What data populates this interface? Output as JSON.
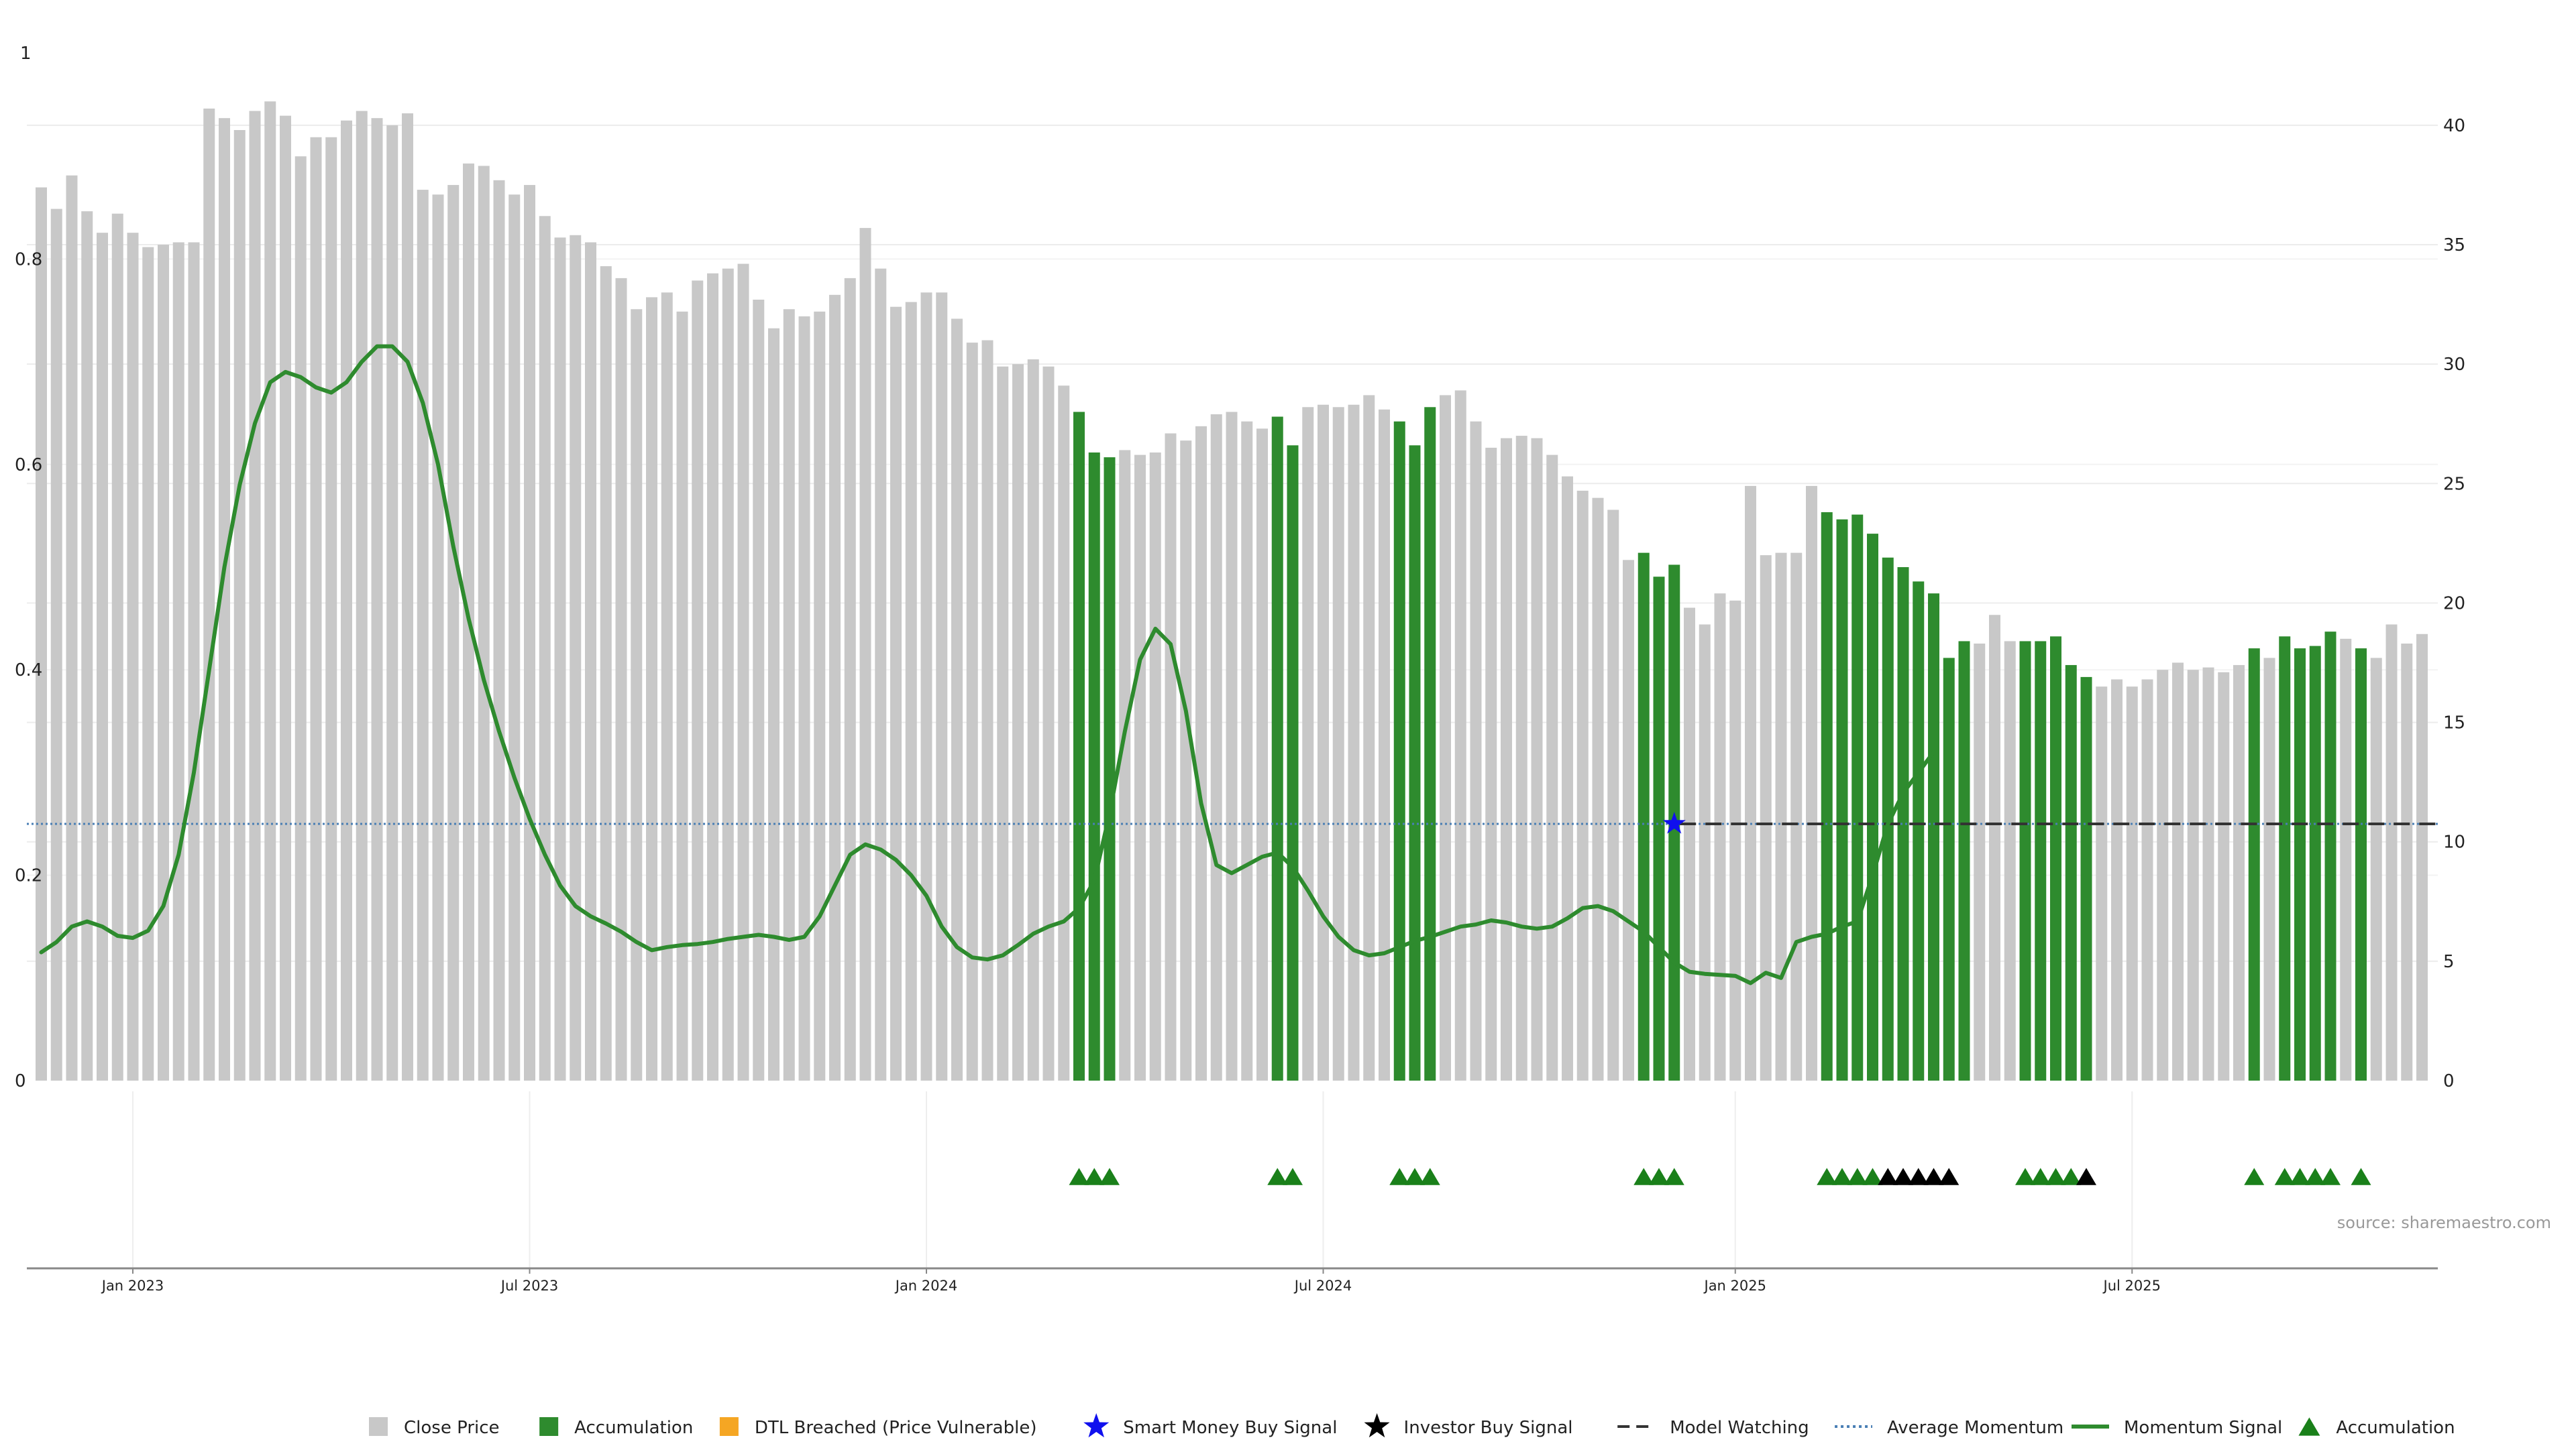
{
  "source_label": "source: sharemaestro.com",
  "colors": {
    "close_price": "#c8c8c8",
    "accumulation": "#2e8b2e",
    "dtl_breached": "#f5a623",
    "smart_money": "#1010ee",
    "investor": "#000000",
    "model_watching": "#333333",
    "average_momentum": "#4a7fb5",
    "momentum": "#2e8b2e",
    "acc_marker": "#1a801a",
    "investor_marker": "#000000"
  },
  "legend": [
    {
      "key": "close-price",
      "label": "Close Price",
      "symbol": "square",
      "color_key": "close_price"
    },
    {
      "key": "accumulation",
      "label": "Accumulation",
      "symbol": "square",
      "color_key": "accumulation"
    },
    {
      "key": "dtl-breached",
      "label": "DTL Breached (Price Vulnerable)",
      "symbol": "square",
      "color_key": "dtl_breached"
    },
    {
      "key": "smart-money-buy-signal",
      "label": "Smart Money Buy Signal",
      "symbol": "star",
      "color_key": "smart_money"
    },
    {
      "key": "investor-buy-signal",
      "label": "Investor Buy Signal",
      "symbol": "star",
      "color_key": "investor"
    },
    {
      "key": "model-watching",
      "label": "Model Watching",
      "symbol": "dash",
      "color_key": "model_watching"
    },
    {
      "key": "average-momentum",
      "label": "Average Momentum",
      "symbol": "dotted",
      "color_key": "average_momentum"
    },
    {
      "key": "momentum-signal",
      "label": "Momentum Signal",
      "symbol": "line",
      "color_key": "momentum"
    },
    {
      "key": "accumulation-marker",
      "label": "Accumulation",
      "symbol": "triangle",
      "color_key": "acc_marker"
    }
  ],
  "chart_data": {
    "type": "bar",
    "x_axis": {
      "tick_labels": [
        "Jan 2023",
        "Jul 2023",
        "Jan 2024",
        "Jul 2024",
        "Jan 2025",
        "Jul 2025"
      ],
      "tick_bar_index": [
        6,
        32,
        58,
        84,
        111,
        137
      ]
    },
    "y_left": {
      "range": [
        0,
        1
      ],
      "tick_values": [
        0,
        0.2,
        0.4,
        0.6,
        0.8
      ],
      "top_label": "1"
    },
    "y_right": {
      "range": [
        0,
        43
      ],
      "tick_values": [
        0,
        5,
        10,
        15,
        20,
        25,
        30,
        35,
        40
      ]
    },
    "grid": true,
    "legend_position": "bottom",
    "series": [
      {
        "name": "Close Price",
        "axis": "right",
        "values": [
          37.4,
          36.5,
          37.9,
          36.4,
          35.5,
          36.3,
          35.5,
          34.9,
          35.0,
          35.1,
          35.1,
          40.7,
          40.3,
          39.8,
          40.6,
          41.0,
          40.4,
          38.7,
          39.5,
          39.5,
          40.2,
          40.6,
          40.3,
          40.0,
          40.5,
          37.3,
          37.1,
          37.5,
          38.4,
          38.3,
          37.7,
          37.1,
          37.5,
          36.2,
          35.3,
          35.4,
          35.1,
          34.1,
          33.6,
          32.3,
          32.8,
          33.0,
          32.2,
          33.5,
          33.8,
          34.0,
          34.2,
          32.7,
          31.5,
          32.3,
          32.0,
          32.2,
          32.9,
          33.6,
          35.7,
          34.0,
          32.4,
          32.6,
          33.0,
          33.0,
          31.9,
          30.9,
          31.0,
          29.9,
          30.0,
          30.2,
          29.9,
          29.1,
          28.0,
          26.3,
          26.1,
          26.4,
          26.2,
          26.3,
          27.1,
          26.8,
          27.4,
          27.9,
          28.0,
          27.6,
          27.3,
          27.8,
          26.6,
          28.2,
          28.3,
          28.2,
          28.3,
          28.7,
          28.1,
          27.6,
          26.6,
          28.2,
          28.7,
          28.9,
          27.6,
          26.5,
          26.9,
          27.0,
          26.9,
          26.2,
          25.3,
          24.7,
          24.4,
          23.9,
          21.8,
          22.1,
          21.1,
          21.6,
          19.8,
          19.1,
          20.4,
          20.1,
          24.9,
          22.0,
          22.1,
          22.1,
          24.9,
          23.8,
          23.5,
          23.7,
          22.9,
          21.9,
          21.5,
          20.9,
          20.4,
          17.7,
          18.4,
          18.3,
          19.5,
          18.4,
          18.4,
          18.4,
          18.6,
          17.4,
          16.9,
          16.5,
          16.8,
          16.5,
          16.8,
          17.2,
          17.5,
          17.2,
          17.3,
          17.1,
          17.4,
          18.1,
          17.7,
          18.6,
          18.1,
          18.2,
          18.8,
          18.5,
          18.1,
          17.7,
          19.1,
          18.3,
          18.7
        ]
      },
      {
        "name": "Accumulation",
        "axis": "right",
        "bar_indices": [
          68,
          69,
          70,
          81,
          82,
          89,
          90,
          91,
          105,
          106,
          107,
          117,
          118,
          119,
          120,
          121,
          122,
          123,
          124,
          125,
          126,
          130,
          131,
          132,
          133,
          134,
          145,
          147,
          148,
          149,
          150,
          152
        ]
      },
      {
        "name": "Momentum Signal",
        "axis": "left",
        "values": [
          0.125,
          0.135,
          0.15,
          0.155,
          0.15,
          0.141,
          0.139,
          0.146,
          0.17,
          0.22,
          0.3,
          0.4,
          0.5,
          0.58,
          0.64,
          0.68,
          0.69,
          0.685,
          0.675,
          0.67,
          0.68,
          0.7,
          0.715,
          0.715,
          0.7,
          0.66,
          0.6,
          0.52,
          0.45,
          0.39,
          0.34,
          0.295,
          0.255,
          0.22,
          0.19,
          0.17,
          0.16,
          0.153,
          0.145,
          0.135,
          0.127,
          0.13,
          0.132,
          0.133,
          0.135,
          0.138,
          0.14,
          0.142,
          0.14,
          0.137,
          0.14,
          0.16,
          0.19,
          0.22,
          0.23,
          0.225,
          0.215,
          0.2,
          0.18,
          0.15,
          0.13,
          0.12,
          0.118,
          0.122,
          0.132,
          0.143,
          0.15,
          0.155,
          0.168,
          0.195,
          0.26,
          0.34,
          0.41,
          0.44,
          0.425,
          0.36,
          0.27,
          0.21,
          0.202,
          0.21,
          0.218,
          0.222,
          0.208,
          0.185,
          0.16,
          0.14,
          0.127,
          0.122,
          0.124,
          0.13,
          0.136,
          0.14,
          0.145,
          0.15,
          0.152,
          0.156,
          0.154,
          0.15,
          0.148,
          0.15,
          0.158,
          0.168,
          0.17,
          0.165,
          0.155,
          0.145,
          0.13,
          0.115,
          0.106,
          0.104,
          0.103,
          0.102,
          0.095,
          0.105,
          0.1,
          0.135,
          0.14,
          0.143,
          0.15,
          0.155,
          0.2,
          0.25,
          0.28,
          0.3,
          0.32
        ]
      },
      {
        "name": "Average Momentum",
        "axis": "left",
        "value": 0.25
      },
      {
        "name": "Model Watching",
        "axis": "left",
        "value": 0.25,
        "from_bar_index": 107
      },
      {
        "name": "Smart Money Buy Signal",
        "axis": "left",
        "points": [
          {
            "bar_index": 107,
            "value": 0.25
          }
        ]
      }
    ],
    "markers": {
      "accumulation_triangles": [
        68,
        69,
        70,
        81,
        82,
        89,
        90,
        91,
        105,
        106,
        107,
        117,
        118,
        119,
        120,
        130,
        131,
        132,
        133,
        145,
        147,
        148,
        149,
        150,
        152
      ],
      "investor_triangles": [
        121,
        122,
        123,
        124,
        125,
        134
      ]
    }
  }
}
